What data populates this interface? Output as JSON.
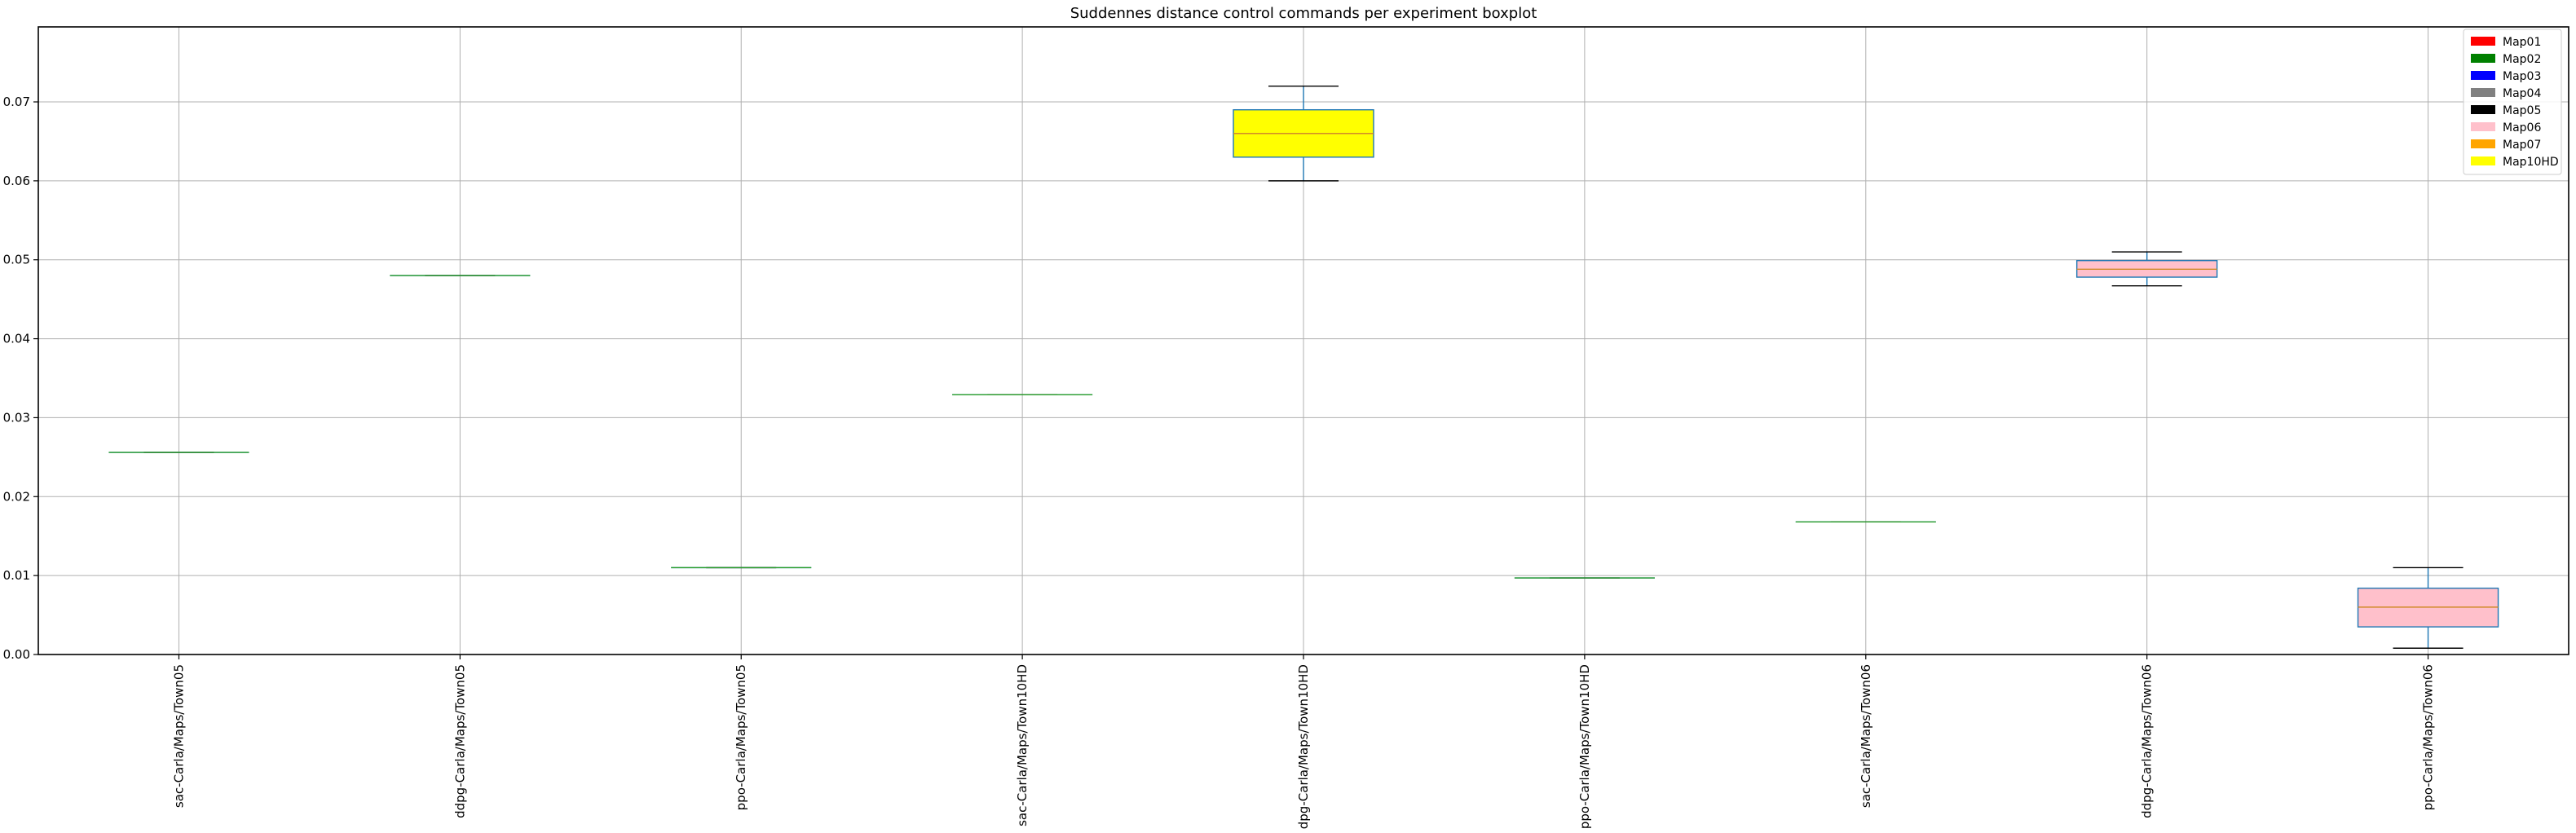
{
  "chart_data": {
    "type": "boxplot",
    "title": "Suddennes distance control commands per experiment boxplot",
    "xlabel": "",
    "ylabel": "",
    "ylim": [
      0.0,
      0.0795
    ],
    "yticks": [
      0.0,
      0.01,
      0.02,
      0.03,
      0.04,
      0.05,
      0.06,
      0.07
    ],
    "ytick_labels": [
      "0.00",
      "0.01",
      "0.02",
      "0.03",
      "0.04",
      "0.05",
      "0.06",
      "0.07"
    ],
    "grid": true,
    "legend_position": "top-right",
    "legend": [
      {
        "label": "Map01",
        "color": "#ff0000"
      },
      {
        "label": "Map02",
        "color": "#008000"
      },
      {
        "label": "Map03",
        "color": "#0000ff"
      },
      {
        "label": "Map04",
        "color": "#808080"
      },
      {
        "label": "Map05",
        "color": "#000000"
      },
      {
        "label": "Map06",
        "color": "#ffc0cb"
      },
      {
        "label": "Map07",
        "color": "#ffa500"
      },
      {
        "label": "Map10HD",
        "color": "#ffff00"
      }
    ],
    "categories": [
      "sac-Carla/Maps/Town05",
      "ddpg-Carla/Maps/Town05",
      "ppo-Carla/Maps/Town05",
      "sac-Carla/Maps/Town10HD",
      "ddpg-Carla/Maps/Town10HD",
      "ppo-Carla/Maps/Town10HD",
      "sac-Carla/Maps/Town06",
      "ddpg-Carla/Maps/Town06",
      "ppo-Carla/Maps/Town06"
    ],
    "boxes": [
      {
        "min": 0.0256,
        "q1": 0.0256,
        "median": 0.0256,
        "q3": 0.0256,
        "max": 0.0256,
        "fill": "#ffc0cb"
      },
      {
        "min": 0.048,
        "q1": 0.048,
        "median": 0.048,
        "q3": 0.048,
        "max": 0.048,
        "fill": "#ffc0cb"
      },
      {
        "min": 0.011,
        "q1": 0.011,
        "median": 0.011,
        "q3": 0.011,
        "max": 0.011,
        "fill": "#ffc0cb"
      },
      {
        "min": 0.0329,
        "q1": 0.0329,
        "median": 0.0329,
        "q3": 0.0329,
        "max": 0.0329,
        "fill": "#ffff00"
      },
      {
        "min": 0.06,
        "q1": 0.063,
        "median": 0.066,
        "q3": 0.069,
        "max": 0.072,
        "fill": "#ffff00"
      },
      {
        "min": 0.0097,
        "q1": 0.0097,
        "median": 0.0097,
        "q3": 0.0097,
        "max": 0.0097,
        "fill": "#ffff00"
      },
      {
        "min": 0.0168,
        "q1": 0.0168,
        "median": 0.0168,
        "q3": 0.0168,
        "max": 0.0168,
        "fill": "#ffc0cb"
      },
      {
        "min": 0.0467,
        "q1": 0.0478,
        "median": 0.0488,
        "q3": 0.0499,
        "max": 0.051,
        "fill": "#ffc0cb"
      },
      {
        "min": 0.0008,
        "q1": 0.0035,
        "median": 0.006,
        "q3": 0.0084,
        "max": 0.011,
        "fill": "#ffc0cb"
      }
    ],
    "box_edge_color": "#1f77b4",
    "median_color": "#2ca02c",
    "whisker_cap_color": "#000000"
  }
}
